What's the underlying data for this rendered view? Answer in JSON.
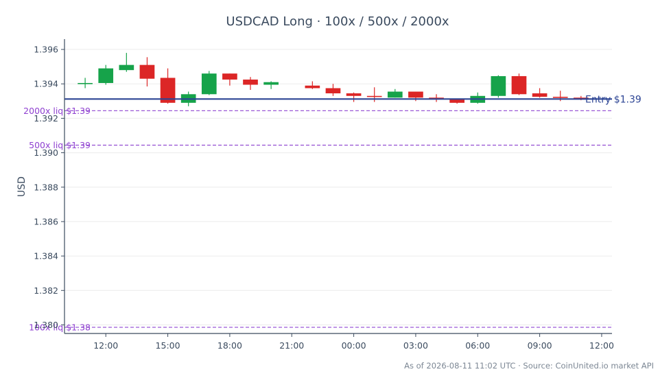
{
  "chart_data": {
    "type": "candlestick",
    "title": "USDCAD Long · 100x / 500x / 2000x",
    "ylabel": "USD",
    "ylim": [
      1.3795,
      1.3966
    ],
    "y_ticks": [
      "1.380",
      "1.382",
      "1.384",
      "1.386",
      "1.388",
      "1.390",
      "1.392",
      "1.394",
      "1.396"
    ],
    "x_ticks": [
      "12:00",
      "15:00",
      "18:00",
      "21:00",
      "00:00",
      "03:00",
      "06:00",
      "09:00",
      "12:00"
    ],
    "x_start": "2026-08-10T10:00",
    "x_end": "2026-08-11T12:30",
    "grid": "horizontal",
    "colors": {
      "up": "#16a34a",
      "down": "#dc2626",
      "entry": "#2c4494",
      "liq": "#9b59d6",
      "axis": "#3a4a5e"
    },
    "candles": [
      {
        "t": "2026-08-10T11:00",
        "o": 1.394,
        "h": 1.39435,
        "l": 1.39375,
        "c": 1.39405
      },
      {
        "t": "2026-08-10T12:00",
        "o": 1.39405,
        "h": 1.3951,
        "l": 1.39395,
        "c": 1.3949
      },
      {
        "t": "2026-08-10T13:00",
        "o": 1.3948,
        "h": 1.3958,
        "l": 1.3947,
        "c": 1.3951
      },
      {
        "t": "2026-08-10T14:00",
        "o": 1.3951,
        "h": 1.39555,
        "l": 1.39385,
        "c": 1.3943
      },
      {
        "t": "2026-08-10T15:00",
        "o": 1.39435,
        "h": 1.3949,
        "l": 1.39285,
        "c": 1.3929
      },
      {
        "t": "2026-08-10T16:00",
        "o": 1.3929,
        "h": 1.39355,
        "l": 1.3927,
        "c": 1.3934
      },
      {
        "t": "2026-08-10T17:00",
        "o": 1.3934,
        "h": 1.39475,
        "l": 1.39335,
        "c": 1.3946
      },
      {
        "t": "2026-08-10T18:00",
        "o": 1.3946,
        "h": 1.3946,
        "l": 1.3939,
        "c": 1.39425
      },
      {
        "t": "2026-08-10T19:00",
        "o": 1.39425,
        "h": 1.3944,
        "l": 1.39365,
        "c": 1.39395
      },
      {
        "t": "2026-08-10T20:00",
        "o": 1.39395,
        "h": 1.39415,
        "l": 1.3937,
        "c": 1.3941
      },
      {
        "t": "2026-08-10T22:00",
        "o": 1.3939,
        "h": 1.39415,
        "l": 1.3937,
        "c": 1.39375
      },
      {
        "t": "2026-08-10T23:00",
        "o": 1.39375,
        "h": 1.394,
        "l": 1.3933,
        "c": 1.39345
      },
      {
        "t": "2026-08-11T00:00",
        "o": 1.39345,
        "h": 1.3935,
        "l": 1.39295,
        "c": 1.3933
      },
      {
        "t": "2026-08-11T01:00",
        "o": 1.3933,
        "h": 1.3938,
        "l": 1.39295,
        "c": 1.39325
      },
      {
        "t": "2026-08-11T02:00",
        "o": 1.3932,
        "h": 1.3937,
        "l": 1.3932,
        "c": 1.39355
      },
      {
        "t": "2026-08-11T03:00",
        "o": 1.39355,
        "h": 1.39355,
        "l": 1.393,
        "c": 1.3932
      },
      {
        "t": "2026-08-11T04:00",
        "o": 1.3932,
        "h": 1.3934,
        "l": 1.39295,
        "c": 1.39315
      },
      {
        "t": "2026-08-11T05:00",
        "o": 1.39315,
        "h": 1.39315,
        "l": 1.39285,
        "c": 1.3929
      },
      {
        "t": "2026-08-11T06:00",
        "o": 1.3929,
        "h": 1.3935,
        "l": 1.39285,
        "c": 1.3933
      },
      {
        "t": "2026-08-11T07:00",
        "o": 1.3933,
        "h": 1.3945,
        "l": 1.3932,
        "c": 1.39445
      },
      {
        "t": "2026-08-11T08:00",
        "o": 1.39445,
        "h": 1.3946,
        "l": 1.39335,
        "c": 1.3934
      },
      {
        "t": "2026-08-11T09:00",
        "o": 1.39345,
        "h": 1.39375,
        "l": 1.3932,
        "c": 1.39325
      },
      {
        "t": "2026-08-11T10:00",
        "o": 1.39325,
        "h": 1.3936,
        "l": 1.393,
        "c": 1.3932
      },
      {
        "t": "2026-08-11T11:00",
        "o": 1.3932,
        "h": 1.3933,
        "l": 1.39305,
        "c": 1.39315
      }
    ],
    "entry": {
      "value": 1.39312,
      "label": "Entry $1.39"
    },
    "liquidation_lines": [
      {
        "label": "2000x liq $1.39",
        "value": 1.39244
      },
      {
        "label": "500x liq $1.39",
        "value": 1.39044
      },
      {
        "label": "100x liq $1.38",
        "value": 1.37986
      }
    ]
  },
  "footer": "As of 2026-08-11 11:02 UTC · Source: CoinUnited.io market API"
}
